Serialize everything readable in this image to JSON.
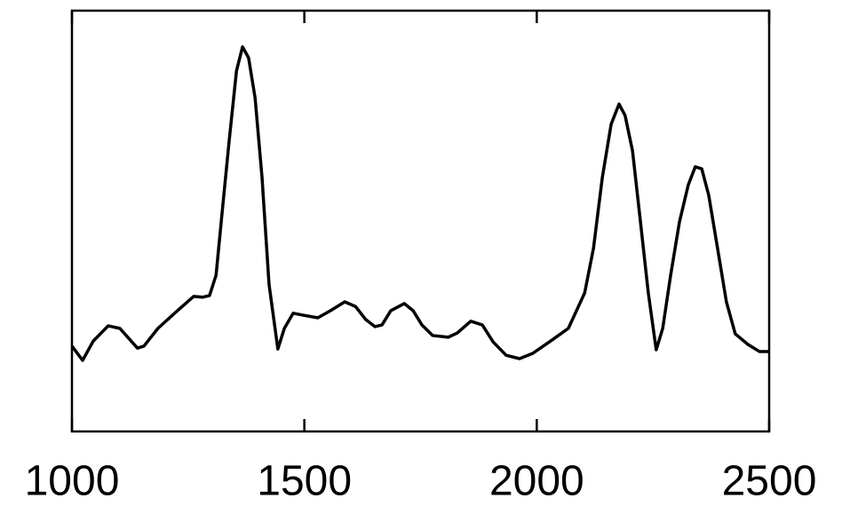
{
  "chart_data": {
    "type": "line",
    "x": [
      1000,
      1023,
      1046,
      1078,
      1103,
      1141,
      1155,
      1185,
      1227,
      1262,
      1281,
      1296,
      1310,
      1323,
      1338,
      1354,
      1367,
      1380,
      1394,
      1409,
      1424,
      1443,
      1457,
      1476,
      1499,
      1529,
      1556,
      1587,
      1610,
      1632,
      1652,
      1667,
      1686,
      1715,
      1734,
      1753,
      1776,
      1810,
      1829,
      1858,
      1883,
      1906,
      1934,
      1963,
      1992,
      2030,
      2068,
      2103,
      2122,
      2141,
      2160,
      2177,
      2190,
      2206,
      2221,
      2240,
      2257,
      2271,
      2288,
      2307,
      2326,
      2341,
      2355,
      2370,
      2389,
      2408,
      2427,
      2454,
      2479,
      2500
    ],
    "series": [
      {
        "color": "#000000",
        "values": [
          0.203,
          0.169,
          0.215,
          0.251,
          0.245,
          0.198,
          0.203,
          0.245,
          0.287,
          0.321,
          0.319,
          0.323,
          0.371,
          0.519,
          0.688,
          0.857,
          0.914,
          0.888,
          0.793,
          0.603,
          0.35,
          0.196,
          0.245,
          0.281,
          0.276,
          0.27,
          0.287,
          0.308,
          0.297,
          0.266,
          0.249,
          0.253,
          0.287,
          0.304,
          0.287,
          0.253,
          0.228,
          0.224,
          0.234,
          0.262,
          0.253,
          0.213,
          0.181,
          0.173,
          0.186,
          0.215,
          0.245,
          0.329,
          0.435,
          0.603,
          0.73,
          0.778,
          0.751,
          0.667,
          0.519,
          0.329,
          0.194,
          0.245,
          0.371,
          0.498,
          0.586,
          0.629,
          0.624,
          0.561,
          0.435,
          0.308,
          0.232,
          0.207,
          0.19,
          0.19
        ]
      }
    ],
    "xlim": [
      1000,
      2500
    ],
    "xticks": [
      1000,
      1500,
      2000,
      2500
    ],
    "ylim": [
      0,
      1
    ],
    "grid": false
  }
}
